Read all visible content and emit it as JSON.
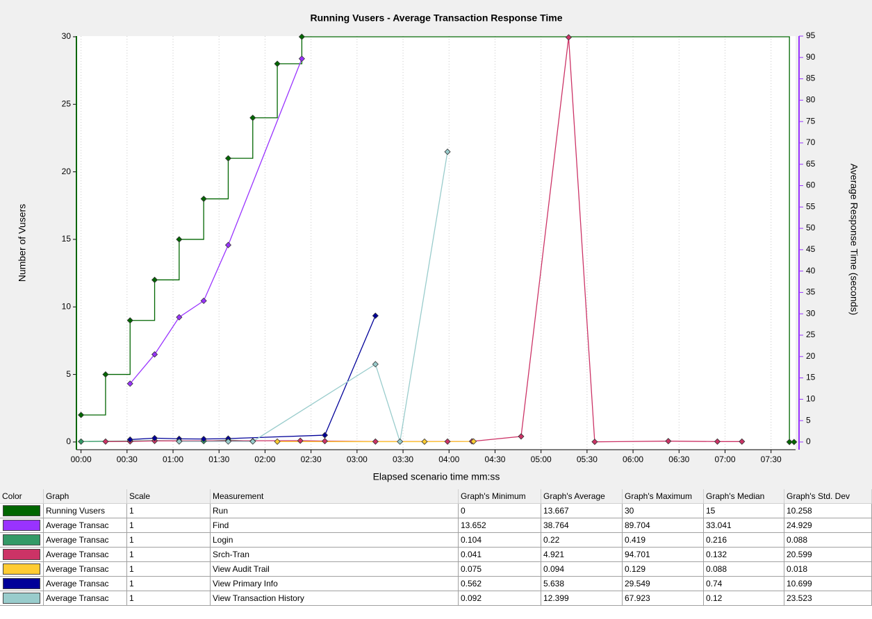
{
  "chart_data": {
    "type": "line",
    "title": "Running Vusers - Average Transaction Response Time",
    "xlabel": "Elapsed scenario time mm:ss",
    "ylabel": "Number of Vusers",
    "y2label": "Average Response Time (seconds)",
    "xlim": [
      -3,
      466
    ],
    "ylim": [
      -0.57,
      30.05
    ],
    "y2lim": [
      -1.8,
      95
    ],
    "xticks": [
      {
        "value": 0,
        "label": "00:00"
      },
      {
        "value": 30,
        "label": "00:30"
      },
      {
        "value": 60,
        "label": "01:00"
      },
      {
        "value": 90,
        "label": "01:30"
      },
      {
        "value": 120,
        "label": "02:00"
      },
      {
        "value": 150,
        "label": "02:30"
      },
      {
        "value": 180,
        "label": "03:00"
      },
      {
        "value": 210,
        "label": "03:30"
      },
      {
        "value": 240,
        "label": "04:00"
      },
      {
        "value": 270,
        "label": "04:30"
      },
      {
        "value": 300,
        "label": "05:00"
      },
      {
        "value": 330,
        "label": "05:30"
      },
      {
        "value": 360,
        "label": "06:00"
      },
      {
        "value": 390,
        "label": "06:30"
      },
      {
        "value": 420,
        "label": "07:00"
      },
      {
        "value": 450,
        "label": "07:30"
      }
    ],
    "yticks": [
      0,
      5,
      10,
      15,
      20,
      25,
      30
    ],
    "y2ticks": [
      0,
      5,
      10,
      15,
      20,
      25,
      30,
      35,
      40,
      45,
      50,
      55,
      60,
      65,
      70,
      75,
      80,
      85,
      90,
      95
    ],
    "grid": "x",
    "y_axis_color": "#006600",
    "y2_axis_color": "#9933ff",
    "series": [
      {
        "name": "Run",
        "color": "#006600",
        "axis": "y",
        "step": true,
        "x": [
          0,
          16,
          32,
          48,
          64,
          80,
          96,
          112,
          128,
          144,
          462,
          465
        ],
        "values": [
          2,
          5,
          9,
          12,
          15,
          18,
          21,
          24,
          28,
          30,
          0,
          0
        ]
      },
      {
        "name": "Find",
        "color": "#9933ff",
        "axis": "y2",
        "x": [
          32,
          48,
          64,
          80,
          96,
          144
        ],
        "values": [
          13.652,
          20.5,
          29.2,
          33.041,
          46.1,
          89.704
        ]
      },
      {
        "name": "Login",
        "color": "#339966",
        "axis": "y2",
        "x": [
          0,
          32,
          48,
          64,
          80,
          96,
          112
        ],
        "values": [
          0.104,
          0.22,
          0.3,
          0.25,
          0.2,
          0.419,
          0.216
        ]
      },
      {
        "name": "Srch-Tran",
        "color": "#cc3366",
        "axis": "y2",
        "x": [
          16,
          32,
          48,
          143,
          159,
          192,
          239,
          255,
          287,
          318,
          335,
          383,
          415,
          431
        ],
        "values": [
          0.1,
          0.132,
          0.25,
          0.3,
          0.2,
          0.1,
          0.1,
          0.15,
          1.3,
          94.701,
          0.041,
          0.2,
          0.1,
          0.1
        ]
      },
      {
        "name": "View Audit Trail",
        "color": "#ffcc33",
        "axis": "y2",
        "x": [
          128,
          224,
          256
        ],
        "values": [
          0.088,
          0.075,
          0.129
        ]
      },
      {
        "name": "View Primary Info",
        "color": "#000099",
        "axis": "y2",
        "x": [
          32,
          48,
          64,
          80,
          96,
          159,
          192
        ],
        "values": [
          0.562,
          0.9,
          0.74,
          0.7,
          0.8,
          1.6,
          29.549
        ]
      },
      {
        "name": "View Transaction History",
        "color": "#99cccc",
        "axis": "y2",
        "x": [
          64,
          96,
          112,
          192,
          208,
          239
        ],
        "values": [
          0.12,
          0.11,
          0.12,
          18.2,
          0.092,
          67.923
        ]
      }
    ]
  },
  "table": {
    "columns": [
      "Color",
      "Graph",
      "Scale",
      "Measurement",
      "Graph's Minimum",
      "Graph's Average",
      "Graph's Maximum",
      "Graph's Median",
      "Graph's Std. Dev"
    ],
    "rows": [
      [
        "Running Vusers",
        1,
        0,
        13.667,
        30,
        15,
        10.258
      ],
      [
        "Average Transac",
        1,
        13.652,
        38.764,
        89.704,
        33.041,
        24.929
      ],
      [
        "Average Transac",
        1,
        0.104,
        0.22,
        0.419,
        0.216,
        0.088
      ],
      [
        "Average Transac",
        1,
        0.041,
        4.921,
        94.701,
        0.132,
        20.599
      ],
      [
        "Average Transac",
        1,
        0.075,
        0.094,
        0.129,
        0.088,
        0.018
      ],
      [
        "Average Transac",
        1,
        0.562,
        5.638,
        29.549,
        0.74,
        10.699
      ],
      [
        "Average Transac",
        1,
        0.092,
        12.399,
        67.923,
        0.12,
        23.523
      ]
    ]
  }
}
